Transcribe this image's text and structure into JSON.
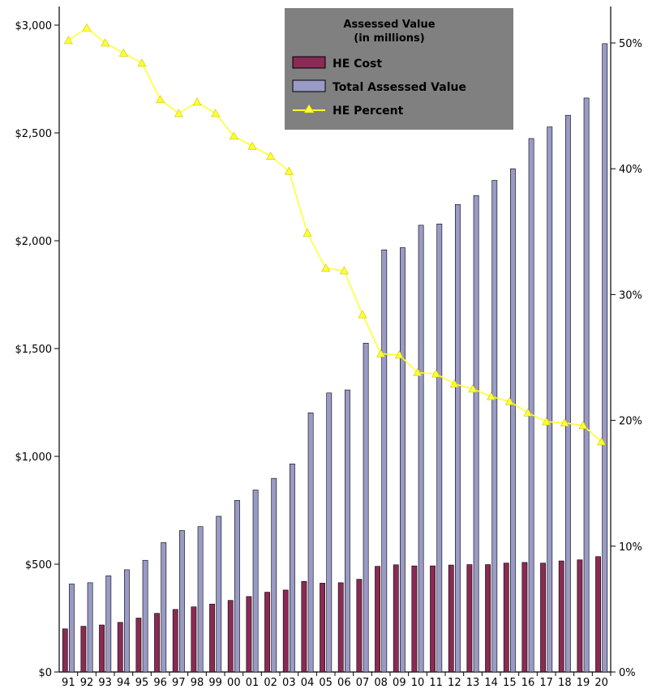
{
  "chart_data": {
    "type": "bar",
    "categories": [
      "91",
      "92",
      "93",
      "94",
      "95",
      "96",
      "97",
      "98",
      "99",
      "00",
      "01",
      "02",
      "03",
      "04",
      "05",
      "06",
      "07",
      "08",
      "09",
      "10",
      "11",
      "12",
      "13",
      "14",
      "15",
      "16",
      "17",
      "18",
      "19",
      "20"
    ],
    "series": [
      {
        "name": "HE Cost",
        "type": "bar",
        "axis": "left",
        "values": [
          200,
          212,
          218,
          230,
          250,
          272,
          290,
          302,
          315,
          332,
          350,
          370,
          380,
          420,
          412,
          414,
          430,
          490,
          497,
          492,
          492,
          496,
          498,
          498,
          505,
          508,
          505,
          515,
          520,
          535
        ]
      },
      {
        "name": "Total Assessed Value",
        "type": "bar",
        "axis": "left",
        "values": [
          408,
          414,
          446,
          474,
          518,
          600,
          656,
          674,
          722,
          796,
          844,
          898,
          965,
          1202,
          1294,
          1308,
          1525,
          1958,
          1968,
          2072,
          2078,
          2168,
          2210,
          2280,
          2334,
          2474,
          2528,
          2582,
          2662,
          2914
        ]
      },
      {
        "name": "HE Percent",
        "type": "line",
        "axis": "right",
        "values": [
          50.2,
          51.2,
          50.0,
          49.2,
          48.4,
          45.5,
          44.4,
          45.3,
          44.4,
          42.6,
          41.8,
          41.0,
          39.8,
          34.9,
          32.1,
          31.9,
          28.4,
          25.3,
          25.2,
          23.8,
          23.7,
          22.9,
          22.5,
          21.9,
          21.5,
          20.6,
          19.9,
          19.8,
          19.6,
          18.3
        ]
      }
    ],
    "colors": {
      "he_cost": "#8a2a55",
      "total_assessed": "#9a9ac6",
      "he_percent": "#ffff33",
      "legend_bg": "#808080"
    },
    "y_left": {
      "range": [
        0,
        3000
      ],
      "ticks": [
        "$0",
        "$500",
        "$1,000",
        "$1,500",
        "$2,000",
        "$2,500",
        "$3,000"
      ]
    },
    "y_right": {
      "range": [
        0,
        52
      ],
      "ticks": [
        "0%",
        "10%",
        "20%",
        "30%",
        "40%",
        "50%"
      ]
    },
    "legend": {
      "title_line1": "Assessed Value",
      "title_line2": "(in millions)",
      "entries": [
        "HE Cost",
        "Total Assessed Value",
        "HE Percent"
      ],
      "placement": "top-center"
    },
    "grid": false
  }
}
